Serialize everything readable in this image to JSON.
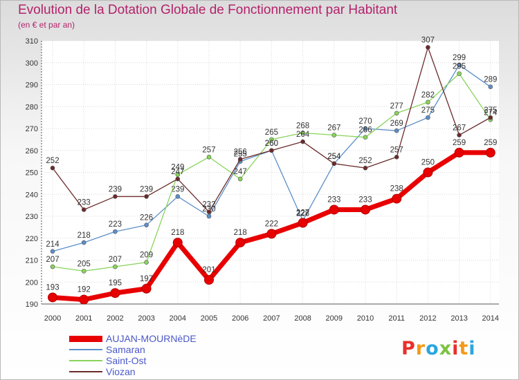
{
  "title": "Evolution de la Dotation Globale de Fonctionnement par Habitant",
  "subtitle": "(en € et par an)",
  "logo": {
    "text": "Proxiti",
    "colors": [
      "#e8302a",
      "#f39a1a",
      "#2aa6e0",
      "#7dc242",
      "#e8302a",
      "#f39a1a",
      "#2aa6e0"
    ]
  },
  "chart_data": {
    "type": "line",
    "title": "Evolution de la Dotation Globale de Fonctionnement par Habitant",
    "subtitle": "(en € et par an)",
    "xlabel": "",
    "ylabel": "",
    "ylim": [
      190,
      310
    ],
    "yticks": [
      190,
      200,
      210,
      220,
      230,
      240,
      250,
      260,
      270,
      280,
      290,
      300,
      310
    ],
    "grid": true,
    "legend_position": "bottom-left",
    "categories": [
      "2000",
      "2001",
      "2002",
      "2003",
      "2004",
      "2005",
      "2006",
      "2007",
      "2008",
      "2009",
      "2010",
      "2011",
      "2012",
      "2013",
      "2014"
    ],
    "series": [
      {
        "name": "Samaran",
        "color": "#5b8fc9",
        "values": [
          214,
          218,
          223,
          226,
          239,
          230,
          255,
          260,
          228,
          254,
          270,
          269,
          275,
          299,
          289
        ]
      },
      {
        "name": "Saint-Ost",
        "color": "#88d45a",
        "values": [
          207,
          205,
          207,
          209,
          249,
          257,
          247,
          265,
          268,
          267,
          266,
          277,
          282,
          295,
          274
        ]
      },
      {
        "name": "Viozan",
        "color": "#6b2a2a",
        "values": [
          252,
          233,
          239,
          239,
          247,
          232,
          256,
          260,
          264,
          254,
          252,
          257,
          307,
          267,
          275
        ]
      },
      {
        "name": "AUJAN-MOURNèDE",
        "color": "#e80000",
        "values": [
          193,
          192,
          195,
          197,
          218,
          201,
          218,
          222,
          227,
          233,
          233,
          238,
          250,
          259,
          259
        ]
      }
    ]
  }
}
